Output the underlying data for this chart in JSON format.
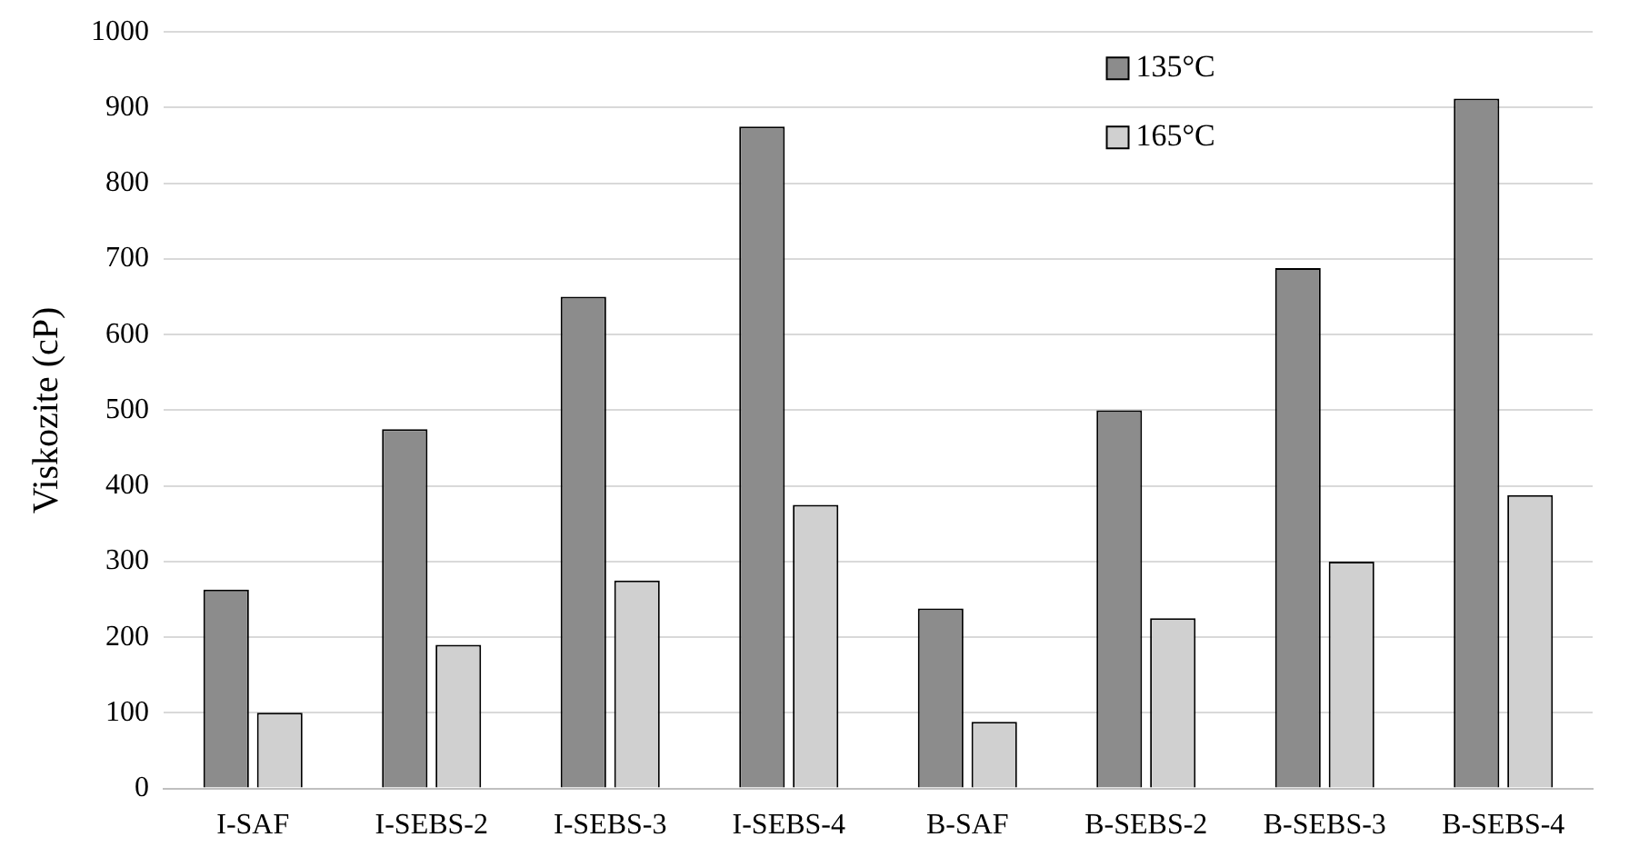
{
  "chart_data": {
    "type": "bar",
    "ylabel": "Viskozite (cP)",
    "categories": [
      "I-SAF",
      "I-SEBS-2",
      "I-SEBS-3",
      "I-SEBS-4",
      "B-SAF",
      "B-SEBS-2",
      "B-SEBS-3",
      "B-SEBS-4"
    ],
    "series": [
      {
        "name": "135°C",
        "color": "#8c8c8c",
        "values": [
          263,
          475,
          650,
          875,
          238,
          500,
          688,
          912
        ]
      },
      {
        "name": "165°C",
        "color": "#d0d0d0",
        "values": [
          100,
          190,
          275,
          375,
          88,
          225,
          300,
          388
        ]
      }
    ],
    "ylim": [
      0,
      1000
    ],
    "yticks": [
      0,
      100,
      200,
      300,
      400,
      500,
      600,
      700,
      800,
      900,
      1000
    ],
    "grid": "y",
    "legend": "top right"
  }
}
